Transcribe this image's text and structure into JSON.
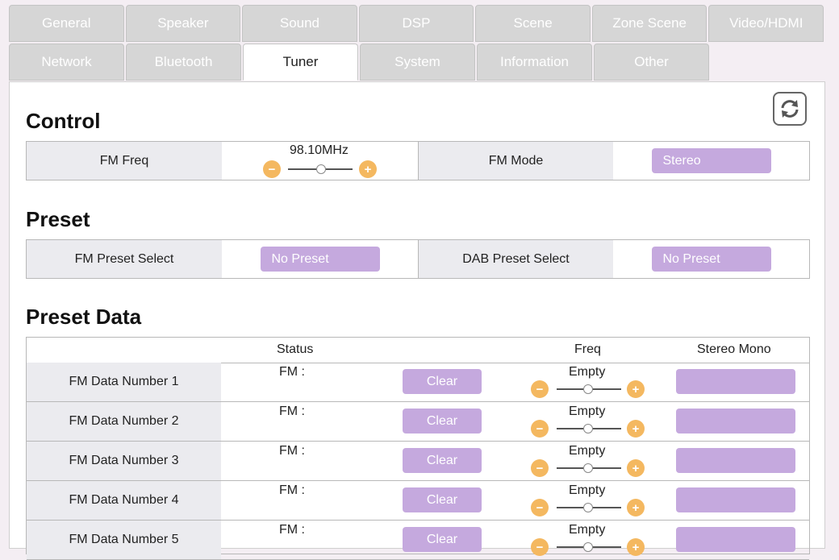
{
  "tabs": {
    "row1": [
      "General",
      "Speaker",
      "Sound",
      "DSP",
      "Scene",
      "Zone Scene",
      "Video/HDMI"
    ],
    "row2": [
      "Network",
      "Bluetooth",
      "Tuner",
      "System",
      "Information",
      "Other"
    ],
    "active": "Tuner"
  },
  "control": {
    "heading": "Control",
    "fm_freq_label": "FM Freq",
    "fm_freq_value": "98.10MHz",
    "fm_mode_label": "FM Mode",
    "fm_mode_value": "Stereo"
  },
  "preset": {
    "heading": "Preset",
    "fm_label": "FM Preset Select",
    "fm_value": "No Preset",
    "dab_label": "DAB Preset Select",
    "dab_value": "No Preset"
  },
  "preset_data": {
    "heading": "Preset Data",
    "headers": {
      "status": "Status",
      "freq": "Freq",
      "stereo_mono": "Stereo Mono"
    },
    "rows": [
      {
        "label": "FM Data Number 1",
        "status": "FM :",
        "clear": "Clear",
        "freq": "Empty"
      },
      {
        "label": "FM Data Number 2",
        "status": "FM :",
        "clear": "Clear",
        "freq": "Empty"
      },
      {
        "label": "FM Data Number 3",
        "status": "FM :",
        "clear": "Clear",
        "freq": "Empty"
      },
      {
        "label": "FM Data Number 4",
        "status": "FM :",
        "clear": "Clear",
        "freq": "Empty"
      },
      {
        "label": "FM Data Number 5",
        "status": "FM :",
        "clear": "Clear",
        "freq": "Empty"
      }
    ]
  },
  "icons": {
    "refresh": "refresh-icon",
    "minus": "−",
    "plus": "+"
  }
}
